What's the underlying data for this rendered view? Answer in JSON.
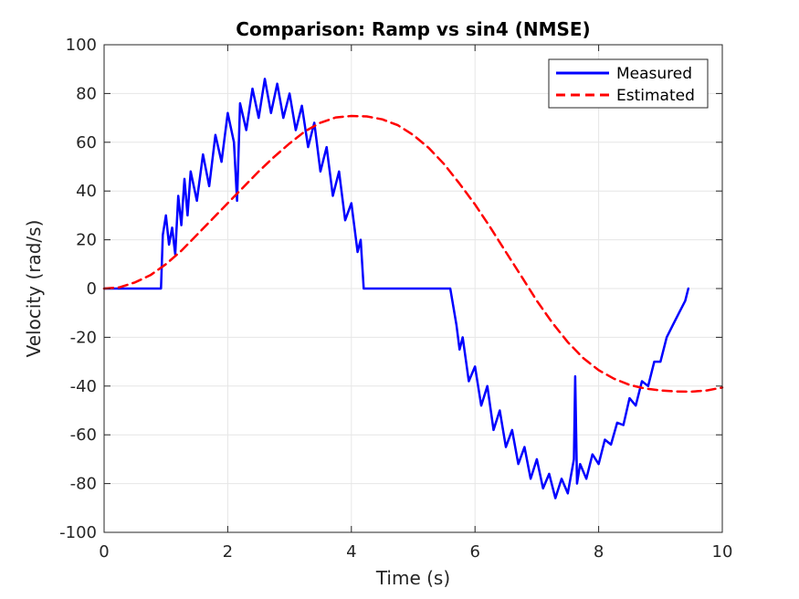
{
  "chart_data": {
    "type": "line",
    "title": "Comparison: Ramp vs sin4 (NMSE)",
    "xlabel": "Time (s)",
    "ylabel": "Velocity (rad/s)",
    "xlim": [
      0,
      10
    ],
    "ylim": [
      -100,
      100
    ],
    "xticks": [
      0,
      2,
      4,
      6,
      8,
      10
    ],
    "yticks": [
      -100,
      -80,
      -60,
      -40,
      -20,
      0,
      20,
      40,
      60,
      80,
      100
    ],
    "grid": true,
    "legend": "top-right",
    "series": [
      {
        "name": "Measured",
        "color": "#0000ff",
        "style": "solid",
        "x": [
          0,
          0.2,
          0.4,
          0.6,
          0.8,
          0.92,
          0.95,
          1.0,
          1.05,
          1.1,
          1.15,
          1.2,
          1.25,
          1.3,
          1.35,
          1.4,
          1.5,
          1.6,
          1.7,
          1.8,
          1.9,
          2.0,
          2.1,
          2.15,
          2.2,
          2.3,
          2.4,
          2.5,
          2.6,
          2.7,
          2.8,
          2.9,
          3.0,
          3.1,
          3.2,
          3.3,
          3.4,
          3.5,
          3.6,
          3.7,
          3.8,
          3.9,
          4.0,
          4.1,
          4.15,
          4.2,
          4.22,
          5.4,
          5.5,
          5.6,
          5.7,
          5.75,
          5.8,
          5.9,
          6.0,
          6.1,
          6.2,
          6.3,
          6.4,
          6.5,
          6.6,
          6.7,
          6.8,
          6.9,
          7.0,
          7.1,
          7.2,
          7.3,
          7.4,
          7.5,
          7.6,
          7.62,
          7.65,
          7.7,
          7.8,
          7.9,
          8.0,
          8.1,
          8.2,
          8.3,
          8.4,
          8.5,
          8.6,
          8.7,
          8.8,
          8.9,
          9.0,
          9.1,
          9.2,
          9.3,
          9.4,
          9.45
        ],
        "y": [
          0,
          0,
          0,
          0,
          0,
          0,
          22,
          30,
          18,
          25,
          14,
          38,
          26,
          45,
          30,
          48,
          36,
          55,
          42,
          63,
          52,
          72,
          60,
          36,
          76,
          65,
          82,
          70,
          86,
          72,
          84,
          70,
          80,
          65,
          75,
          58,
          68,
          48,
          58,
          38,
          48,
          28,
          35,
          15,
          20,
          0,
          0,
          0,
          0,
          0,
          -15,
          -25,
          -20,
          -38,
          -32,
          -48,
          -40,
          -58,
          -50,
          -65,
          -58,
          -72,
          -65,
          -78,
          -70,
          -82,
          -76,
          -86,
          -78,
          -84,
          -70,
          -36,
          -80,
          -72,
          -78,
          -68,
          -72,
          -62,
          -64,
          -55,
          -56,
          -45,
          -48,
          -38,
          -40,
          -30,
          -30,
          -20,
          -15,
          -10,
          -5,
          0
        ]
      },
      {
        "name": "Estimated",
        "color": "#ff0000",
        "style": "dashed",
        "x": [
          0,
          0.25,
          0.5,
          0.75,
          1.0,
          1.25,
          1.5,
          1.75,
          2.0,
          2.25,
          2.5,
          2.75,
          3.0,
          3.25,
          3.5,
          3.75,
          4.0,
          4.25,
          4.5,
          4.75,
          5.0,
          5.25,
          5.5,
          5.75,
          6.0,
          6.25,
          6.5,
          6.75,
          7.0,
          7.25,
          7.5,
          7.75,
          8.0,
          8.25,
          8.5,
          8.75,
          9.0,
          9.25,
          9.5,
          9.75,
          10.0
        ],
        "y": [
          0,
          0.5,
          2.5,
          5.5,
          10,
          15.5,
          22,
          28.5,
          35,
          41.5,
          48,
          54,
          59.5,
          64.5,
          68,
          70.2,
          70.8,
          70.6,
          69.4,
          67,
          63,
          57.7,
          51,
          43,
          34.5,
          25,
          15,
          5,
          -5,
          -14,
          -22,
          -28.5,
          -33.5,
          -37,
          -39.5,
          -41,
          -41.8,
          -42.2,
          -42.3,
          -41.8,
          -40.6
        ]
      }
    ]
  }
}
